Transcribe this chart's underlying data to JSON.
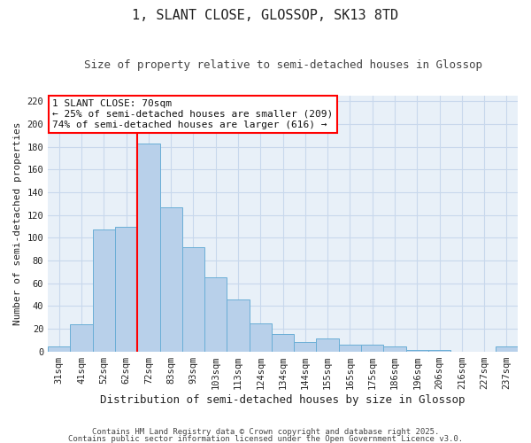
{
  "title": "1, SLANT CLOSE, GLOSSOP, SK13 8TD",
  "subtitle": "Size of property relative to semi-detached houses in Glossop",
  "xlabel": "Distribution of semi-detached houses by size in Glossop",
  "ylabel": "Number of semi-detached properties",
  "categories": [
    "31sqm",
    "41sqm",
    "52sqm",
    "62sqm",
    "72sqm",
    "83sqm",
    "93sqm",
    "103sqm",
    "113sqm",
    "124sqm",
    "134sqm",
    "144sqm",
    "155sqm",
    "165sqm",
    "175sqm",
    "186sqm",
    "196sqm",
    "206sqm",
    "216sqm",
    "227sqm",
    "237sqm"
  ],
  "values": [
    4,
    24,
    107,
    110,
    183,
    127,
    92,
    65,
    46,
    25,
    15,
    8,
    11,
    6,
    6,
    4,
    1,
    1,
    0,
    0,
    4
  ],
  "bar_color": "#b8d0ea",
  "bar_edge_color": "#6aaed6",
  "vline_color": "red",
  "vline_pos": 3.5,
  "annotation_title": "1 SLANT CLOSE: 70sqm",
  "annotation_line1": "← 25% of semi-detached houses are smaller (209)",
  "annotation_line2": "74% of semi-detached houses are larger (616) →",
  "annotation_box_color": "white",
  "annotation_box_edge": "red",
  "ylim": [
    0,
    225
  ],
  "yticks": [
    0,
    20,
    40,
    60,
    80,
    100,
    120,
    140,
    160,
    180,
    200,
    220
  ],
  "grid_color": "#c8d8ec",
  "background_color": "#e8f0f8",
  "footer1": "Contains HM Land Registry data © Crown copyright and database right 2025.",
  "footer2": "Contains public sector information licensed under the Open Government Licence v3.0.",
  "title_fontsize": 11,
  "subtitle_fontsize": 9,
  "xlabel_fontsize": 9,
  "ylabel_fontsize": 8,
  "tick_fontsize": 7.5,
  "annotation_fontsize": 8,
  "footer_fontsize": 6.5
}
